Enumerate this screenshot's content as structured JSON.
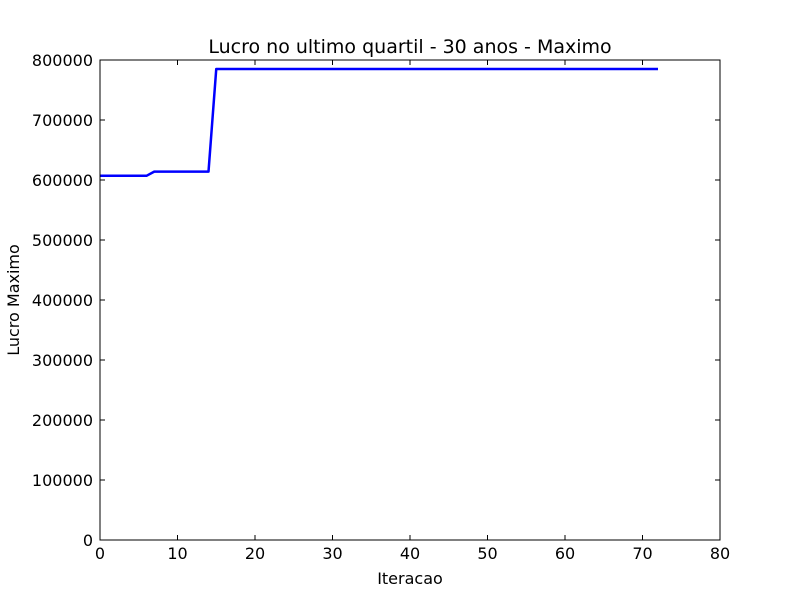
{
  "chart_data": {
    "type": "line",
    "title": "Lucro no ultimo quartil - 30 anos - Maximo",
    "xlabel": "Iteracao",
    "ylabel": "Lucro Maximo",
    "xlim": [
      0,
      80
    ],
    "ylim": [
      0,
      800000
    ],
    "xticks": [
      "0",
      "10",
      "20",
      "30",
      "40",
      "50",
      "60",
      "70",
      "80"
    ],
    "yticks": [
      "0",
      "100000",
      "200000",
      "300000",
      "400000",
      "500000",
      "600000",
      "700000",
      "800000"
    ],
    "grid": false,
    "series": [
      {
        "color": "#0000ff",
        "x": [
          0,
          6,
          7,
          14,
          15,
          72
        ],
        "y": [
          607000,
          607000,
          614000,
          614000,
          785000,
          785000
        ]
      }
    ]
  }
}
